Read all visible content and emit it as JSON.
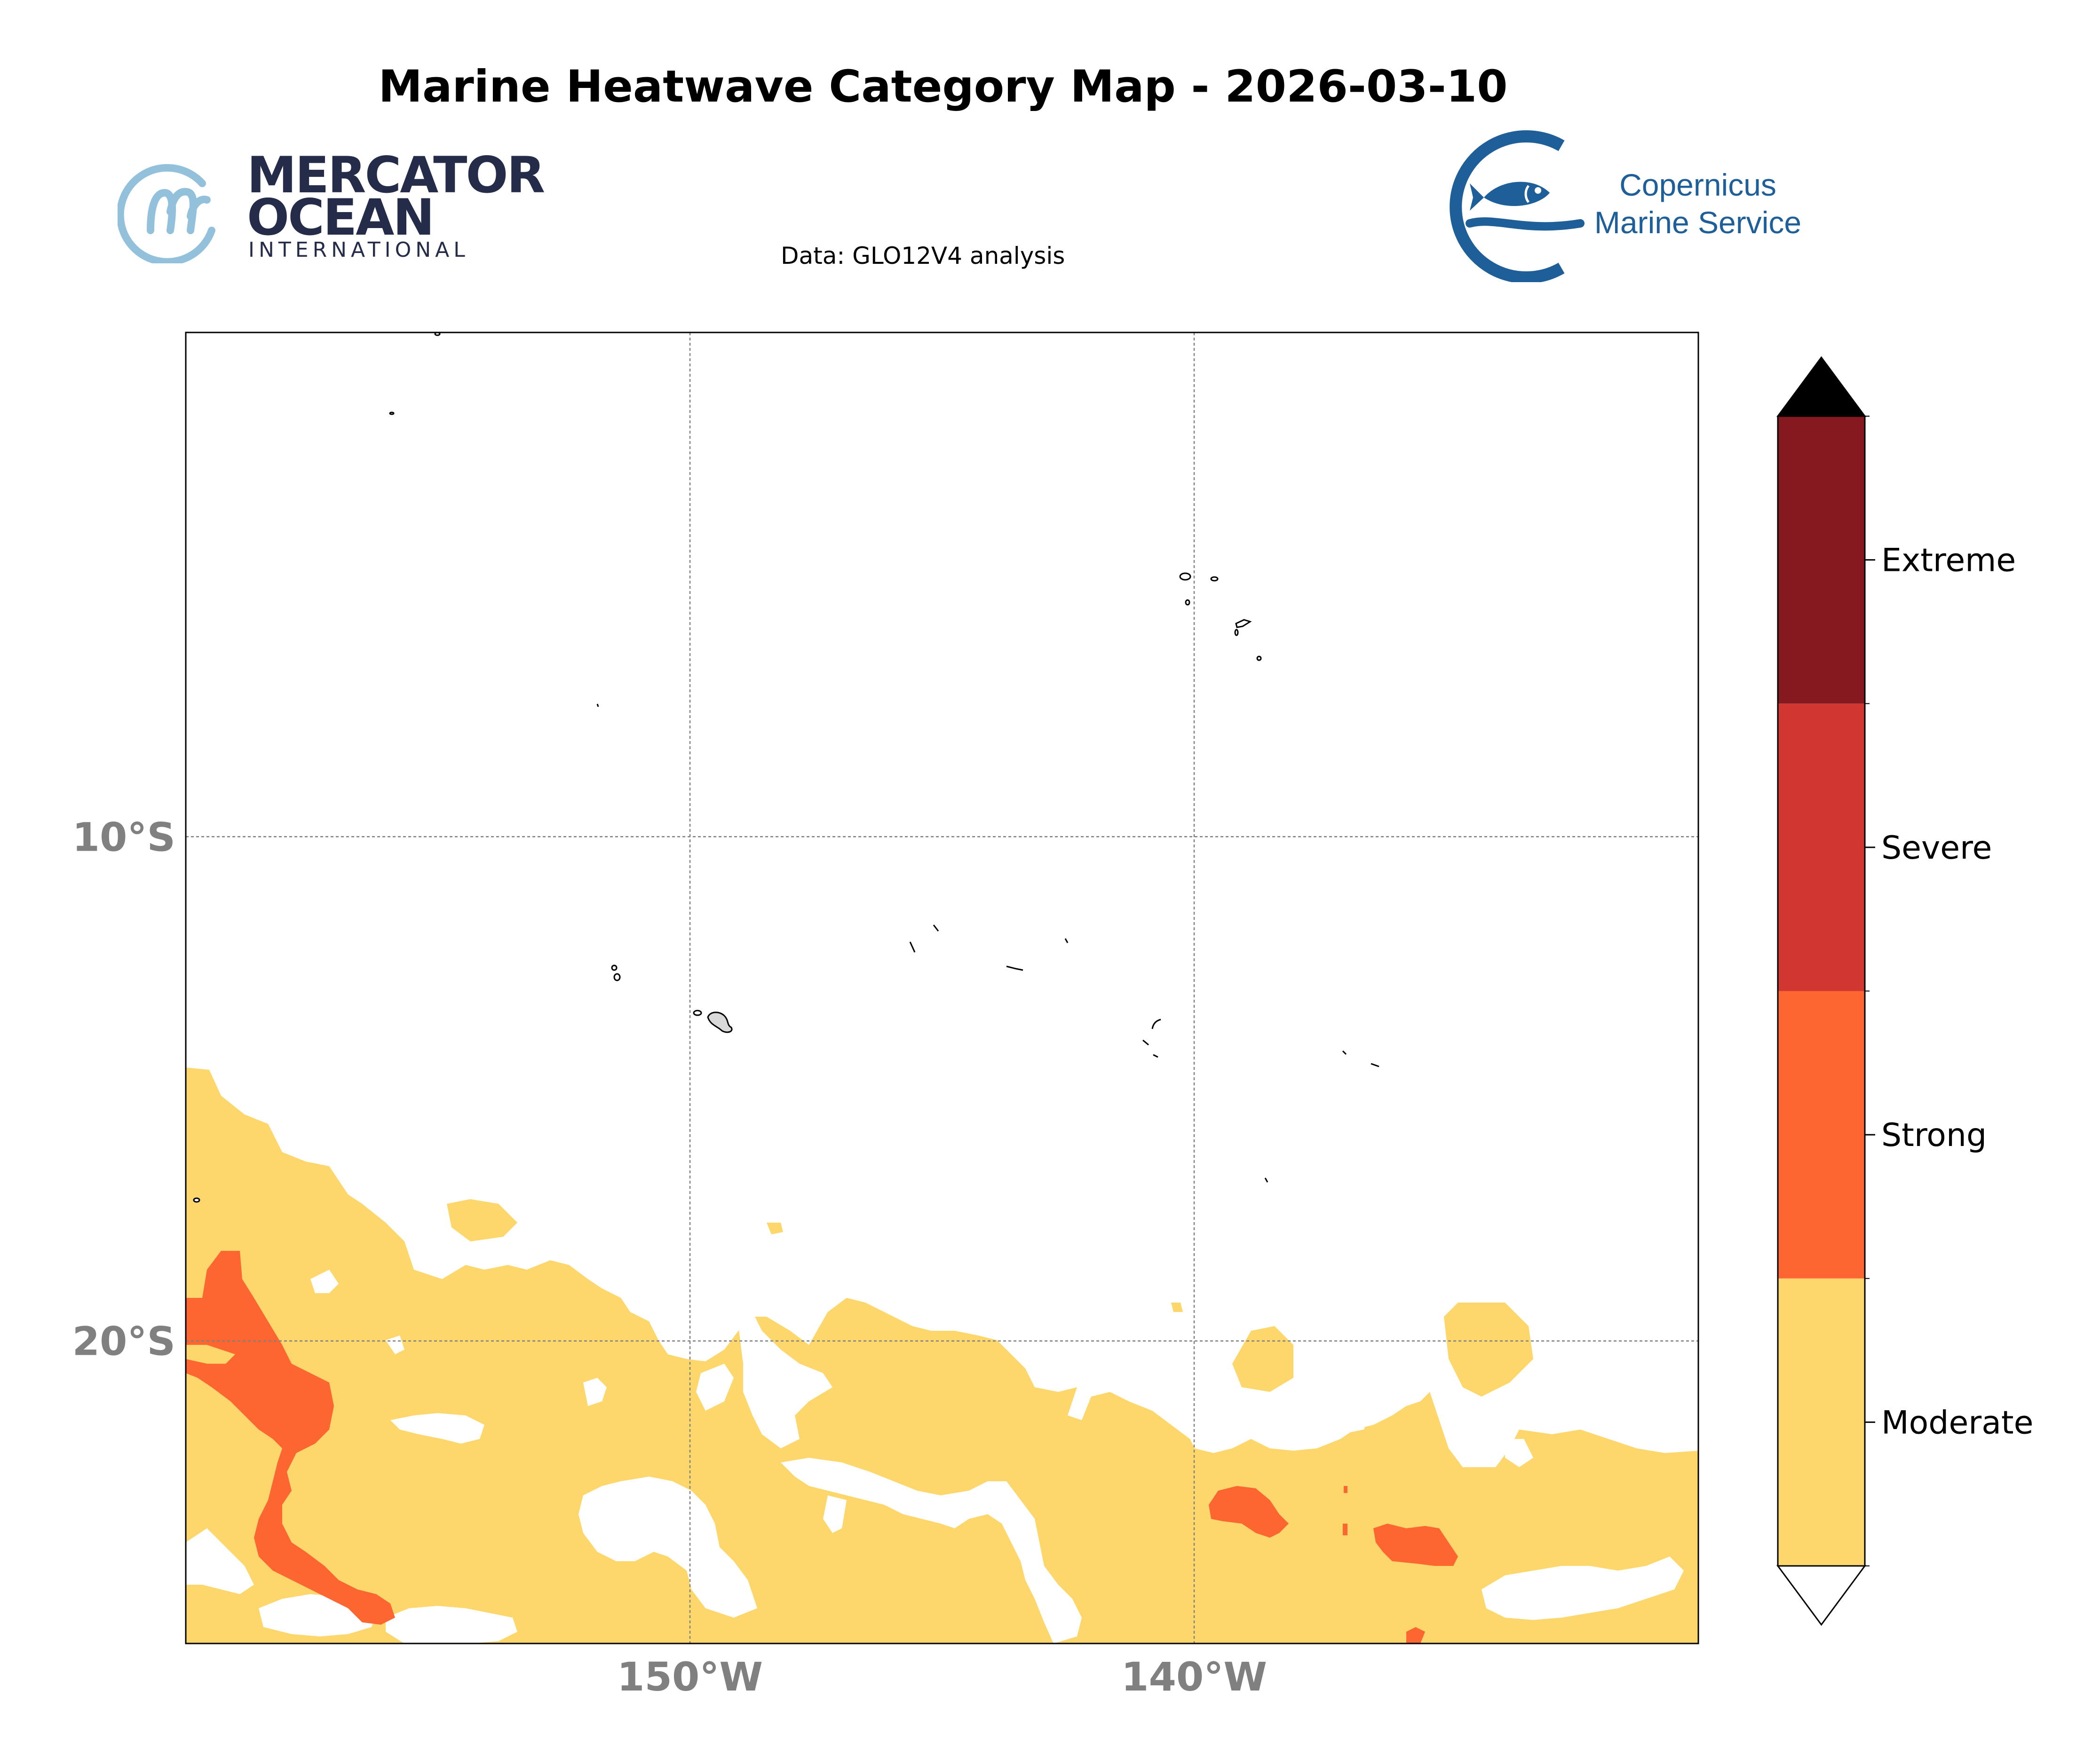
{
  "title": "Marine Heatwave Category Map - 2026-03-10",
  "subtitle": "Data: GLO12V4 analysis",
  "logos": {
    "mercator": {
      "line1": "MERCATOR",
      "line2": "OCEAN",
      "line3": "INTERNATIONAL",
      "icon": "mercator-m-icon"
    },
    "copernicus": {
      "line1": "Copernicus",
      "line2": "Marine Service",
      "icon": "copernicus-fish-icon"
    }
  },
  "map": {
    "lon_range": [
      -160,
      -130
    ],
    "lat_range": [
      -26,
      0
    ],
    "lon_ticks": [
      {
        "value": -150,
        "label": "150°W"
      },
      {
        "value": -140,
        "label": "140°W"
      }
    ],
    "lat_ticks": [
      {
        "value": -10,
        "label": "10°S"
      },
      {
        "value": -20,
        "label": "20°S"
      }
    ],
    "gridlines": true
  },
  "colorbar": {
    "categories": [
      {
        "label": "Moderate",
        "color": "#fdd76c"
      },
      {
        "label": "Strong",
        "color": "#fe6631"
      },
      {
        "label": "Severe",
        "color": "#d13730"
      },
      {
        "label": "Extreme",
        "color": "#861920"
      }
    ],
    "extend_max_color": "#000000",
    "extend_min_color": "#ffffff"
  },
  "colors": {
    "moderate": "#fdd76c",
    "strong": "#fe6631",
    "axis_label": "#808080"
  }
}
